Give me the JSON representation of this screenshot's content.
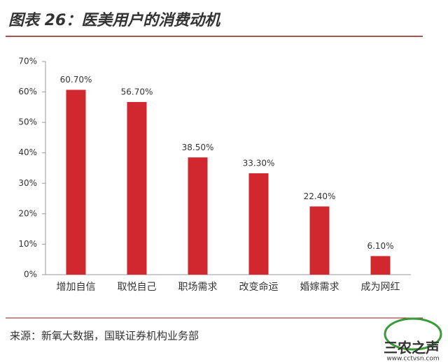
{
  "chart_data": {
    "type": "bar",
    "title": "图表 26：医美用户的消费动机",
    "categories": [
      "增加自信",
      "取悦自己",
      "职场需求",
      "改变命运",
      "婚嫁需求",
      "成为网红"
    ],
    "values": [
      60.7,
      56.7,
      38.5,
      33.3,
      22.4,
      6.1
    ],
    "value_labels": [
      "60.70%",
      "56.70%",
      "38.50%",
      "33.30%",
      "22.40%",
      "6.10%"
    ],
    "color": "#d0282e",
    "ylim": [
      0,
      70
    ],
    "yticks": [
      {
        "value": 0,
        "label": "0%"
      },
      {
        "value": 10,
        "label": "10%"
      },
      {
        "value": 20,
        "label": "20%"
      },
      {
        "value": 30,
        "label": "30%"
      },
      {
        "value": 40,
        "label": "40%"
      },
      {
        "value": 50,
        "label": "50%"
      },
      {
        "value": 60,
        "label": "60%"
      },
      {
        "value": 70,
        "label": "70%"
      }
    ],
    "grid": false,
    "source": "来源：新氧大数据，国联证券机构业务部",
    "watermark": "三农之声",
    "watermark_url": "www.cctvsn.com"
  }
}
